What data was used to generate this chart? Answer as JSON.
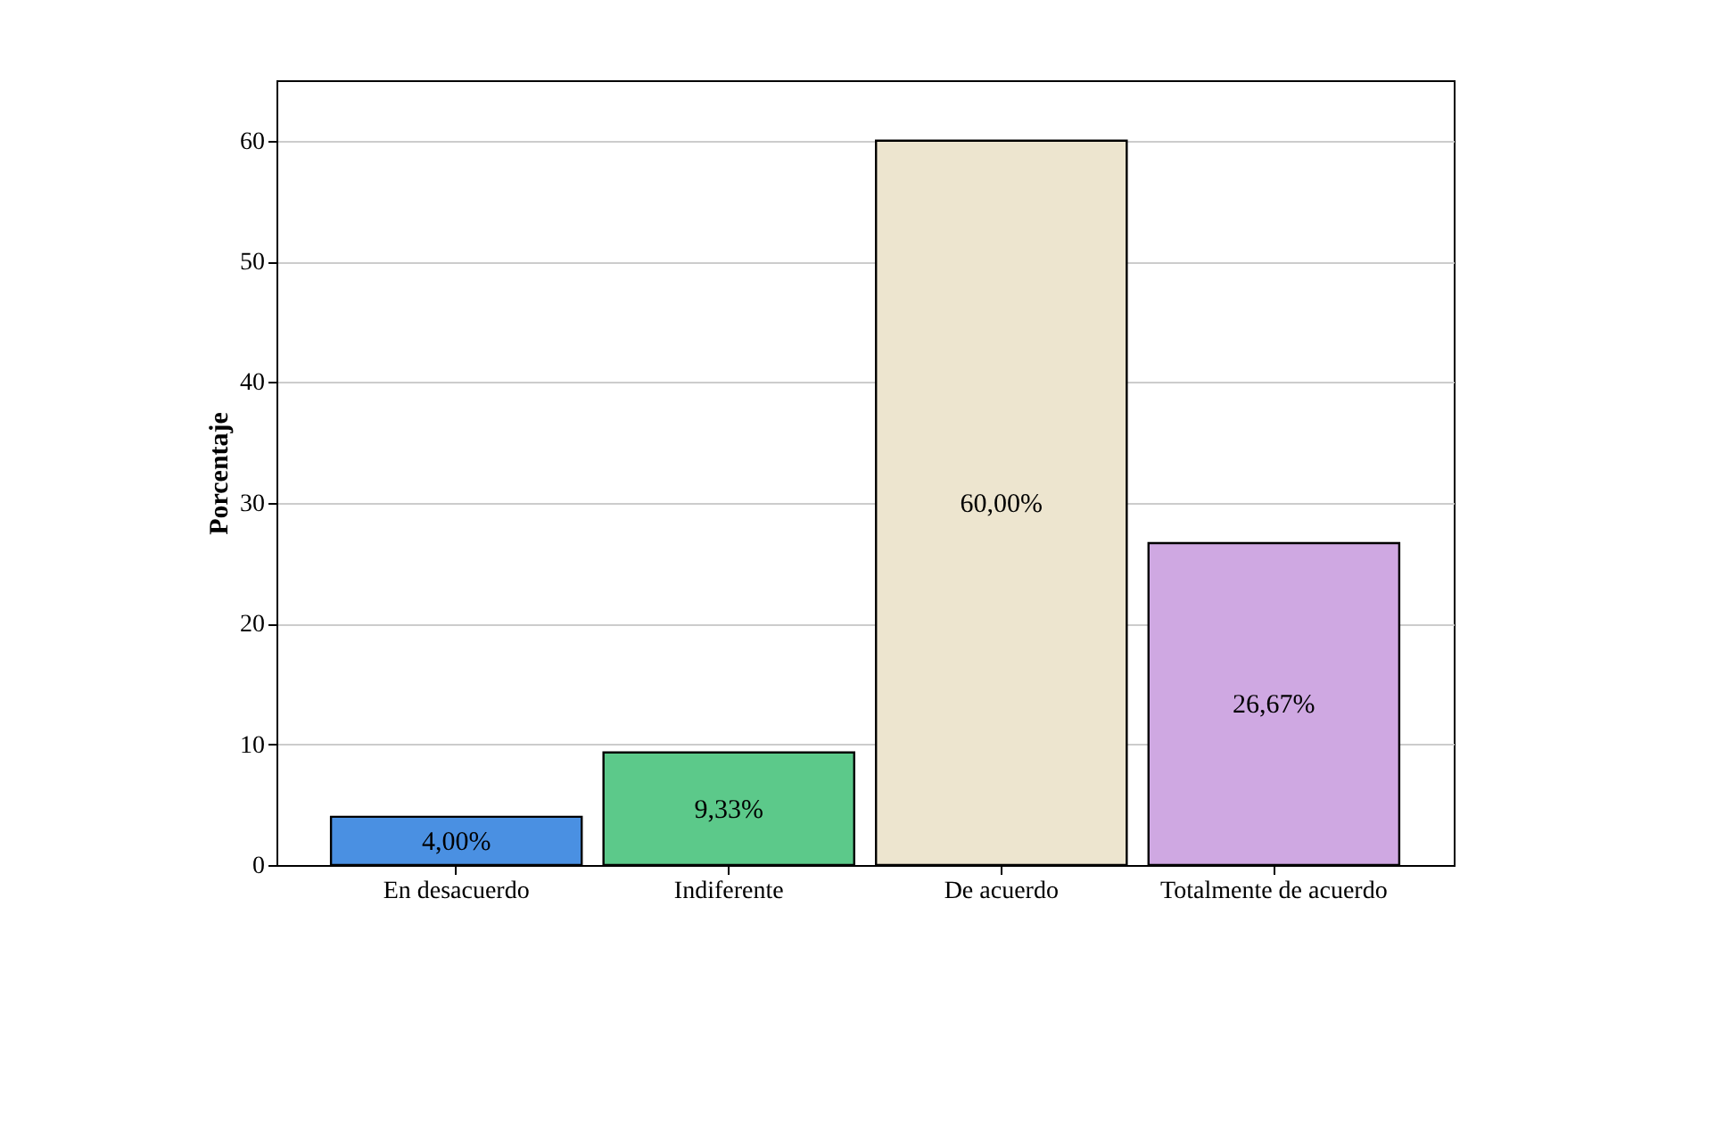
{
  "chart_data": {
    "type": "bar",
    "ylabel": "Porcentaje",
    "categories": [
      "En desacuerdo",
      "Indiferente",
      "De acuerdo",
      "Totalmente de acuerdo"
    ],
    "values": [
      4.0,
      9.33,
      60.0,
      26.67
    ],
    "colors": [
      "#4a90e2",
      "#5cc98a",
      "#ede5cf",
      "#cfa8e2"
    ],
    "value_labels": [
      "4,00%",
      "9,33%",
      "60,00%",
      "26,67%"
    ],
    "ylim": [
      0,
      65
    ],
    "yticks": [
      0,
      10,
      20,
      30,
      40,
      50,
      60
    ],
    "grid": "y",
    "legend": false
  }
}
